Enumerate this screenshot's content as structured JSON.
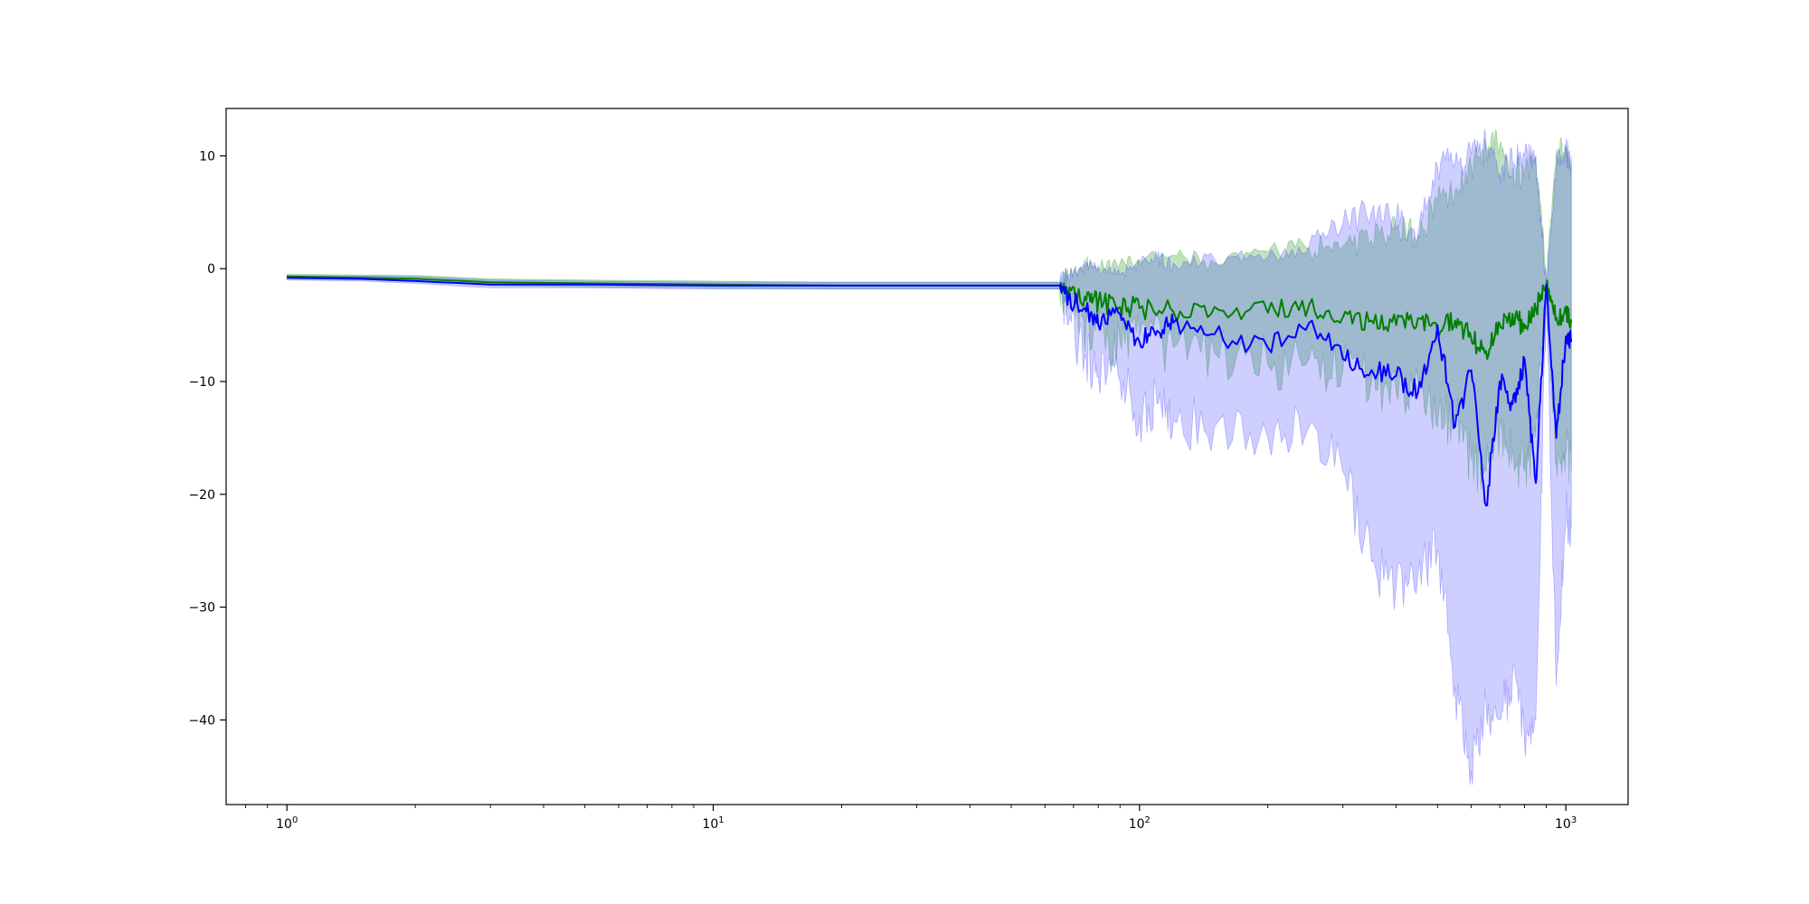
{
  "chart_data": {
    "type": "line",
    "title": "",
    "xlabel": "",
    "ylabel": "",
    "xscale": "log",
    "xlim": [
      0.72,
      1400
    ],
    "ylim": [
      -47.5,
      14.2
    ],
    "grid": false,
    "legend": "none",
    "x_ticks": [
      {
        "value": 1,
        "base": "10",
        "exp": "0"
      },
      {
        "value": 10,
        "base": "10",
        "exp": "1"
      },
      {
        "value": 100,
        "base": "10",
        "exp": "2"
      },
      {
        "value": 1000,
        "base": "10",
        "exp": "3"
      }
    ],
    "y_ticks": [
      {
        "value": 10,
        "label": "10"
      },
      {
        "value": 0,
        "label": "0"
      },
      {
        "value": -10,
        "label": "−10"
      },
      {
        "value": -20,
        "label": "−20"
      },
      {
        "value": -30,
        "label": "−30"
      },
      {
        "value": -40,
        "label": "−40"
      }
    ],
    "colors": {
      "green": "#008000",
      "blue": "#0000ff",
      "green_band": "#2ca02c",
      "blue_band": "#4040ff",
      "axes": "#000000"
    },
    "series": [
      {
        "color": "green",
        "x": [
          1,
          1.5,
          2,
          3,
          5,
          10,
          20,
          40,
          65,
          68,
          75,
          80,
          90,
          100,
          120,
          150,
          200,
          250,
          300,
          350,
          400,
          450,
          500,
          550,
          600,
          650,
          700,
          750,
          800,
          850,
          900,
          950,
          1000,
          1030
        ],
        "y": [
          -0.7,
          -0.8,
          -0.9,
          -1.2,
          -1.3,
          -1.4,
          -1.5,
          -1.5,
          -1.5,
          -2.3,
          -2.8,
          -3.0,
          -3.4,
          -3.5,
          -3.8,
          -3.4,
          -3.9,
          -3.2,
          -4.3,
          -4.6,
          -5.0,
          -4.4,
          -5.5,
          -4.6,
          -6.2,
          -7.3,
          -4.9,
          -4.0,
          -5.3,
          -3.5,
          -1.4,
          -4.3,
          -3.9,
          -4.8
        ],
        "upper": [
          -0.5,
          -0.55,
          -0.6,
          -0.9,
          -1.0,
          -1.1,
          -1.2,
          -1.2,
          -1.2,
          -0.5,
          0.5,
          0.3,
          0.5,
          0.8,
          1.2,
          0.5,
          1.5,
          1.8,
          2.0,
          2.5,
          3.5,
          3.0,
          6.0,
          7.0,
          9.0,
          10.5,
          11.0,
          9.0,
          8.0,
          10.0,
          -1.0,
          10.5,
          10.0,
          9.5
        ],
        "lower": [
          -0.9,
          -1.0,
          -1.1,
          -1.5,
          -1.6,
          -1.7,
          -1.8,
          -1.8,
          -1.8,
          -3.5,
          -5.0,
          -5.5,
          -6.5,
          -6.0,
          -7.0,
          -7.5,
          -8.5,
          -8.0,
          -9.0,
          -10.0,
          -11.0,
          -10.0,
          -14.0,
          -13.0,
          -17.0,
          -18.0,
          -14.0,
          -16.0,
          -18.0,
          -15.0,
          -1.8,
          -17.0,
          -16.0,
          -18.0
        ]
      },
      {
        "color": "blue",
        "x": [
          1,
          1.5,
          2,
          3,
          5,
          10,
          20,
          40,
          65,
          68,
          75,
          80,
          90,
          100,
          110,
          120,
          150,
          200,
          250,
          300,
          350,
          400,
          450,
          500,
          550,
          600,
          650,
          700,
          750,
          800,
          850,
          900,
          950,
          1000,
          1030
        ],
        "y": [
          -0.8,
          -0.9,
          -1.1,
          -1.4,
          -1.4,
          -1.5,
          -1.5,
          -1.5,
          -1.5,
          -2.7,
          -3.8,
          -5.0,
          -4.0,
          -6.5,
          -5.5,
          -4.8,
          -5.8,
          -7.0,
          -4.8,
          -8.0,
          -9.0,
          -9.5,
          -11.0,
          -5.0,
          -14.0,
          -9.0,
          -21.0,
          -10.0,
          -12.0,
          -8.0,
          -19.0,
          -1.4,
          -15.0,
          -6.0,
          -6.5
        ],
        "upper": [
          -0.6,
          -0.65,
          -0.7,
          -1.0,
          -1.1,
          -1.2,
          -1.2,
          -1.2,
          -1.2,
          -0.8,
          0.2,
          0.0,
          -0.5,
          0.5,
          1.0,
          0.5,
          0.8,
          1.0,
          2.0,
          4.0,
          5.0,
          4.5,
          3.0,
          9.0,
          9.5,
          10.0,
          11.0,
          8.5,
          9.5,
          10.0,
          10.0,
          -1.0,
          9.0,
          10.5,
          10.0
        ],
        "lower": [
          -1.0,
          -1.1,
          -1.3,
          -1.7,
          -1.7,
          -1.8,
          -1.8,
          -1.8,
          -1.8,
          -5.0,
          -8.0,
          -9.5,
          -10.0,
          -13.0,
          -12.0,
          -13.5,
          -14.0,
          -15.0,
          -14.0,
          -18.0,
          -26.0,
          -28.0,
          -27.0,
          -25.0,
          -37.0,
          -44.5,
          -38.5,
          -40.0,
          -36.0,
          -42.0,
          -40.0,
          -1.8,
          -37.0,
          -22.0,
          -23.0
        ]
      }
    ]
  }
}
